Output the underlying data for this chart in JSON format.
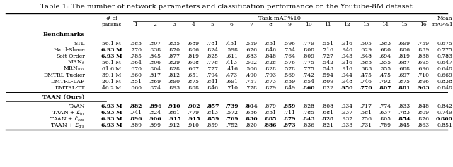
{
  "title": "Table 1: The number of network parameters and classification performance on the Youtube-8M dataset",
  "col_headers_task": [
    "1",
    "2",
    "3",
    "4",
    "5",
    "6",
    "7",
    "8",
    "9",
    "10",
    "11",
    "12",
    "13",
    "14",
    "15",
    "16"
  ],
  "section1_label": "Benchmarks",
  "section2_label": "TAAN (Ours)",
  "rows": [
    {
      "name": "STL",
      "params": "56.1 M",
      "bold_params": false,
      "values": [
        ".683",
        ".807",
        ".835",
        ".689",
        ".781",
        ".431",
        ".559",
        ".831",
        ".596",
        ".779",
        ".551",
        ".916",
        ".505",
        ".383",
        ".699",
        ".759"
      ],
      "mean": "0.675",
      "bold_mean": false,
      "bold_vals": []
    },
    {
      "name": "Hard-Share",
      "params": "6.93 M",
      "bold_params": true,
      "values": [
        ".770",
        ".838",
        ".870",
        ".806",
        ".824",
        ".598",
        ".676",
        ".846",
        ".754",
        ".808",
        ".716",
        ".940",
        ".629",
        ".680",
        ".806",
        ".839"
      ],
      "mean": "0.775",
      "bold_mean": false,
      "bold_vals": []
    },
    {
      "name": "Soft-Order",
      "params": "6.93 M",
      "bold_params": true,
      "values": [
        ".785",
        ".845",
        ".877",
        ".819",
        ".825",
        ".611",
        ".683",
        ".848",
        ".764",
        ".809",
        ".727",
        ".943",
        ".648",
        ".694",
        ".819",
        ".838"
      ],
      "mean": "0.783",
      "bold_mean": false,
      "bold_vals": []
    },
    {
      "name": "MRN$_t$",
      "params": "56.1 M",
      "bold_params": false,
      "values": [
        ".664",
        ".806",
        ".829",
        ".608",
        ".778",
        ".413",
        ".502",
        ".828",
        ".576",
        ".775",
        ".542",
        ".916",
        ".383",
        ".355",
        ".687",
        ".695"
      ],
      "mean": "0.647",
      "bold_mean": false,
      "bold_vals": []
    },
    {
      "name": "MRN$_{full}$",
      "params": "61.6 M",
      "bold_params": false,
      "values": [
        ".670",
        ".804",
        ".828",
        ".607",
        ".777",
        ".416",
        ".506",
        ".828",
        ".578",
        ".775",
        ".543",
        ".916",
        ".383",
        ".355",
        ".688",
        ".696"
      ],
      "mean": "0.648",
      "bold_mean": false,
      "bold_vals": []
    },
    {
      "name": "DMTRL-Tucker",
      "params": "39.1 M",
      "bold_params": false,
      "values": [
        ".660",
        ".817",
        ".812",
        ".651",
        ".794",
        ".473",
        ".490",
        ".793",
        ".569",
        ".742",
        ".594",
        ".944",
        ".475",
        ".475",
        ".697",
        ".710"
      ],
      "mean": "0.669",
      "bold_mean": false,
      "bold_vals": []
    },
    {
      "name": "DMTRL-LAF",
      "params": "20.1 M",
      "bold_params": false,
      "values": [
        ".851",
        ".869",
        ".890",
        ".875",
        ".841",
        ".691",
        ".757",
        ".873",
        ".839",
        ".854",
        ".809",
        ".948",
        ".746",
        ".792",
        ".875",
        ".896"
      ],
      "mean": "0.838",
      "bold_mean": false,
      "bold_vals": []
    },
    {
      "name": "DMTRL-TT",
      "params": "46.2 M",
      "bold_params": false,
      "values": [
        ".860",
        ".874",
        ".893",
        ".888",
        ".846",
        ".710",
        ".778",
        ".879",
        ".849",
        ".860",
        ".822",
        ".950",
        ".770",
        ".807",
        ".881",
        ".903"
      ],
      "mean": "0.848",
      "bold_mean": false,
      "bold_vals": [
        9,
        11,
        12,
        13,
        14,
        15
      ]
    }
  ],
  "rows2": [
    {
      "name": "TAAN",
      "params": "6.93 M",
      "bold_params": true,
      "values": [
        ".882",
        ".896",
        ".910",
        ".902",
        ".857",
        ".739",
        ".804",
        ".879",
        ".859",
        ".828",
        ".808",
        ".934",
        ".717",
        ".774",
        ".833",
        ".848"
      ],
      "mean": "0.842",
      "bold_mean": false,
      "bold_vals": [
        0,
        1,
        2,
        3,
        4,
        5,
        6,
        8
      ]
    },
    {
      "name": "TAAN + $\\mathcal{L}_{tn}$",
      "params": "6.93 M",
      "bold_params": true,
      "values": [
        ".741",
        ".824",
        ".861",
        ".779",
        ".813",
        ".572",
        ".636",
        ".831",
        ".711",
        ".785",
        ".681",
        ".937",
        ".581",
        ".637",
        ".783",
        ".809"
      ],
      "mean": "0.749",
      "bold_mean": false,
      "bold_vals": []
    },
    {
      "name": "TAAN + $\\mathcal{L}_{cos}$",
      "params": "6.93 M",
      "bold_params": true,
      "values": [
        ".896",
        ".906",
        ".915",
        ".915",
        ".859",
        ".769",
        ".830",
        ".885",
        ".879",
        ".843",
        ".828",
        ".937",
        ".756",
        ".805",
        ".854",
        ".876"
      ],
      "mean": "0.860",
      "bold_mean": true,
      "bold_vals": [
        0,
        1,
        2,
        3,
        4,
        5,
        6,
        7,
        8,
        9,
        10,
        14
      ]
    },
    {
      "name": "TAAN + $\\mathcal{L}_{dis}$",
      "params": "6.93 M",
      "bold_params": true,
      "values": [
        ".889",
        ".899",
        ".912",
        ".910",
        ".859",
        ".752",
        ".820",
        ".886",
        ".873",
        ".836",
        ".821",
        ".933",
        ".731",
        ".789",
        ".845",
        ".863"
      ],
      "mean": "0.851",
      "bold_mean": false,
      "bold_vals": [
        7,
        8
      ]
    }
  ],
  "figsize": [
    6.4,
    2.37
  ],
  "dpi": 100,
  "bg_color": "#ffffff",
  "font_size": 5.5,
  "title_font_size": 7.2
}
